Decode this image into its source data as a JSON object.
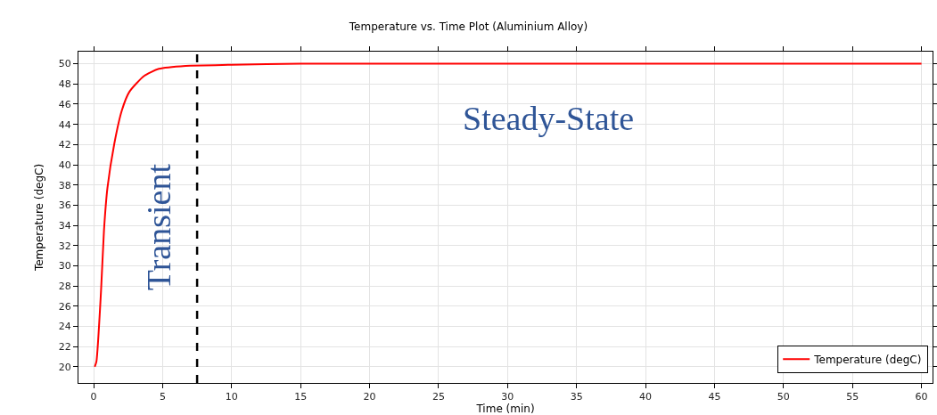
{
  "chart_data": {
    "type": "line",
    "title": "Temperature vs. Time Plot (Aluminium Alloy)",
    "xlabel": "Time (min)",
    "ylabel": "Temperature (degC)",
    "x": [
      0.08,
      0.2,
      0.54,
      0.75,
      1.0,
      1.5,
      2.05,
      2.58,
      3.66,
      4.73,
      6.67,
      10,
      15,
      20,
      30,
      40,
      50,
      60
    ],
    "series": [
      {
        "name": "Temperature (degC)",
        "color": "#ff0000",
        "values": [
          20,
          20.5,
          27.6,
          33.5,
          37.7,
          42.1,
          45.4,
          47.2,
          48.8,
          49.5,
          49.8,
          49.9,
          50,
          50,
          50,
          50,
          50,
          50
        ]
      }
    ],
    "xlim": [
      -1.1,
      60.8
    ],
    "ylim": [
      18.4,
      51.2
    ],
    "xticks": [
      0,
      5,
      10,
      15,
      20,
      25,
      30,
      35,
      40,
      45,
      50,
      55,
      60
    ],
    "yticks": [
      20,
      22,
      24,
      26,
      28,
      30,
      32,
      34,
      36,
      38,
      40,
      42,
      44,
      46,
      48,
      50
    ],
    "ref_lines": [
      {
        "axis": "x",
        "value": 7.5,
        "color": "#000000",
        "line_style": "dashed"
      }
    ],
    "annotations": [
      "Transient",
      "Steady-State"
    ],
    "grid": true,
    "legend": "bottom right",
    "line_style": "solid",
    "marker": "none"
  }
}
